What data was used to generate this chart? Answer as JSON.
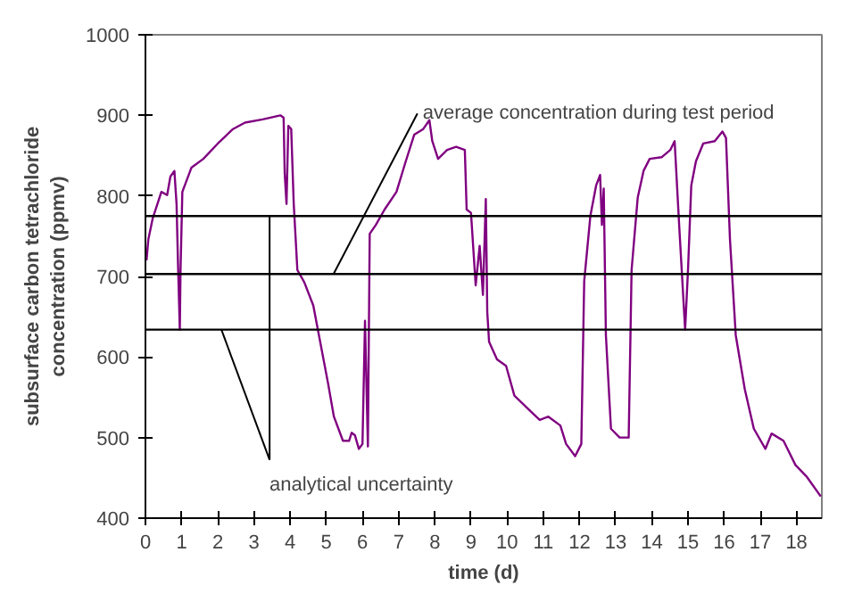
{
  "chart_data": {
    "type": "line",
    "xlabel": "time (d)",
    "ylabel": "subsurface carbon tetrachloride\nconcentration (ppmv)",
    "xlim": [
      0,
      18.7
    ],
    "ylim": [
      400,
      1000
    ],
    "xticks": [
      0,
      1,
      2,
      3,
      4,
      5,
      6,
      7,
      8,
      9,
      10,
      11,
      12,
      13,
      14,
      15,
      16,
      17,
      18
    ],
    "yticks": [
      400,
      500,
      600,
      700,
      800,
      900,
      1000
    ],
    "grid": false,
    "marker": "none",
    "line_style": "solid",
    "series": [
      {
        "color": "#800080",
        "x": [
          0.03,
          0.08,
          0.2,
          0.36,
          0.44,
          0.6,
          0.69,
          0.8,
          0.86,
          0.9,
          0.95,
          0.97,
          1.02,
          1.27,
          1.6,
          2.0,
          2.42,
          2.75,
          3.24,
          3.73,
          3.82,
          3.85,
          3.9,
          3.95,
          4.03,
          4.1,
          4.2,
          4.39,
          4.64,
          4.8,
          5.05,
          5.21,
          5.46,
          5.63,
          5.7,
          5.79,
          5.9,
          6.0,
          6.07,
          6.15,
          6.2,
          6.37,
          6.61,
          6.94,
          7.19,
          7.43,
          7.68,
          7.85,
          7.93,
          8.09,
          8.34,
          8.59,
          8.83,
          8.88,
          9.0,
          9.13,
          9.24,
          9.33,
          9.41,
          9.45,
          9.5,
          9.72,
          9.97,
          10.2,
          10.64,
          10.9,
          11.14,
          11.47,
          11.63,
          11.88,
          12.05,
          12.13,
          12.3,
          12.46,
          12.57,
          12.62,
          12.67,
          12.73,
          12.87,
          13.11,
          13.36,
          13.44,
          13.61,
          13.77,
          13.94,
          14.27,
          14.51,
          14.63,
          14.76,
          14.92,
          15.0,
          15.09,
          15.22,
          15.42,
          15.74,
          15.95,
          16.05,
          16.16,
          16.32,
          16.57,
          16.82,
          17.14,
          17.31,
          17.64,
          17.97,
          18.29,
          18.67
        ],
        "values": [
          720,
          746,
          772,
          794,
          805,
          801,
          824,
          831,
          790,
          716,
          634,
          708,
          805,
          835,
          846,
          865,
          883,
          891,
          895,
          900,
          897,
          828,
          790,
          887,
          883,
          790,
          708,
          693,
          664,
          626,
          567,
          526,
          496,
          496,
          506,
          503,
          486,
          492,
          645,
          489,
          753,
          764,
          783,
          805,
          842,
          876,
          883,
          894,
          868,
          846,
          857,
          861,
          857,
          783,
          779,
          689,
          738,
          677,
          796,
          656,
          619,
          597,
          589,
          552,
          533,
          522,
          526,
          515,
          492,
          477,
          492,
          694,
          775,
          813,
          826,
          764,
          809,
          627,
          511,
          500,
          500,
          708,
          798,
          831,
          846,
          848,
          857,
          868,
          760,
          634,
          708,
          813,
          843,
          865,
          868,
          880,
          872,
          746,
          627,
          560,
          511,
          486,
          505,
          496,
          466,
          451,
          427
        ]
      }
    ],
    "ref_lines": [
      {
        "axis": "y",
        "value": 775,
        "color": "#000000"
      },
      {
        "axis": "y",
        "value": 703,
        "color": "#000000"
      },
      {
        "axis": "y",
        "value": 634,
        "color": "#000000"
      }
    ],
    "annotations": [
      {
        "text": "average concentration during test period",
        "x": 5.2,
        "y": 703
      },
      {
        "text": "analytical uncertainty",
        "x": 2.1,
        "y": 634
      }
    ]
  }
}
